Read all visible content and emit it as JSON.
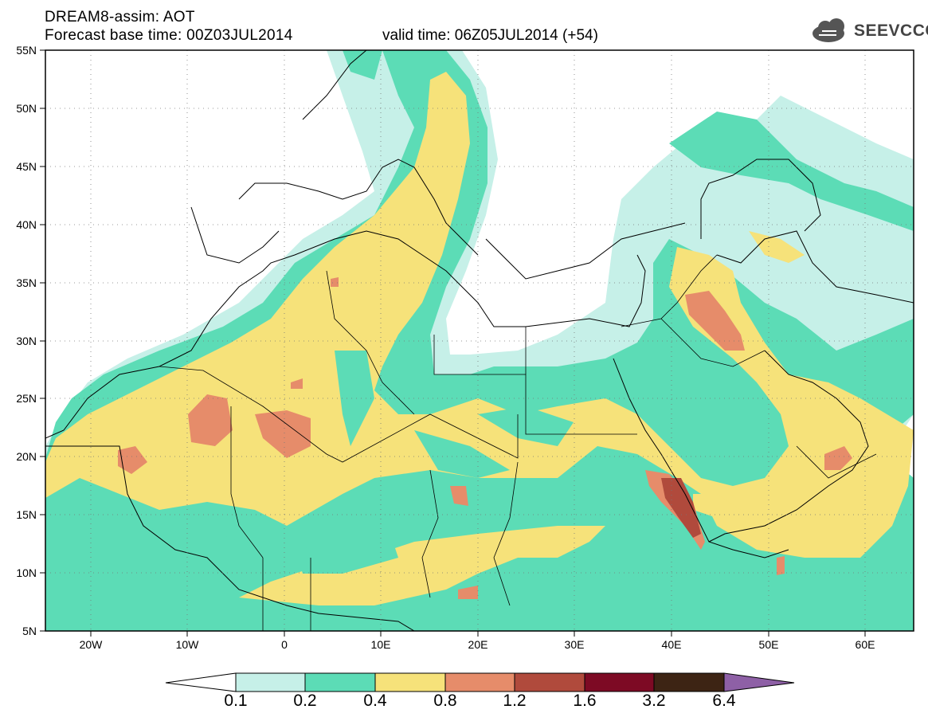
{
  "header": {
    "line1": "DREAM8-assim: AOT",
    "base_time": "Forecast base time: 00Z03JUL2014",
    "valid_time": "valid time: 06Z05JUL2014 (+54)"
  },
  "logo": {
    "text": "SEEVCCC",
    "icon": "cloud-icon"
  },
  "map": {
    "lon_range": [
      -25,
      65
    ],
    "lat_range": [
      5,
      55
    ],
    "lat_ticks": [
      "5N",
      "10N",
      "15N",
      "20N",
      "25N",
      "30N",
      "35N",
      "40N",
      "45N",
      "50N",
      "55N"
    ],
    "lon_ticks": [
      "20W",
      "10W",
      "0",
      "10E",
      "20E",
      "30E",
      "40E",
      "50E",
      "60E"
    ]
  },
  "colorbar": {
    "levels": [
      "0.1",
      "0.2",
      "0.4",
      "0.8",
      "1.2",
      "1.6",
      "3.2",
      "6.4"
    ],
    "colors": [
      "#ffffff",
      "#c6f0e8",
      "#5cdcb6",
      "#f6e27a",
      "#e68c6a",
      "#b04a3c",
      "#7d0a24",
      "#3d2414",
      "#8e60a6"
    ]
  }
}
